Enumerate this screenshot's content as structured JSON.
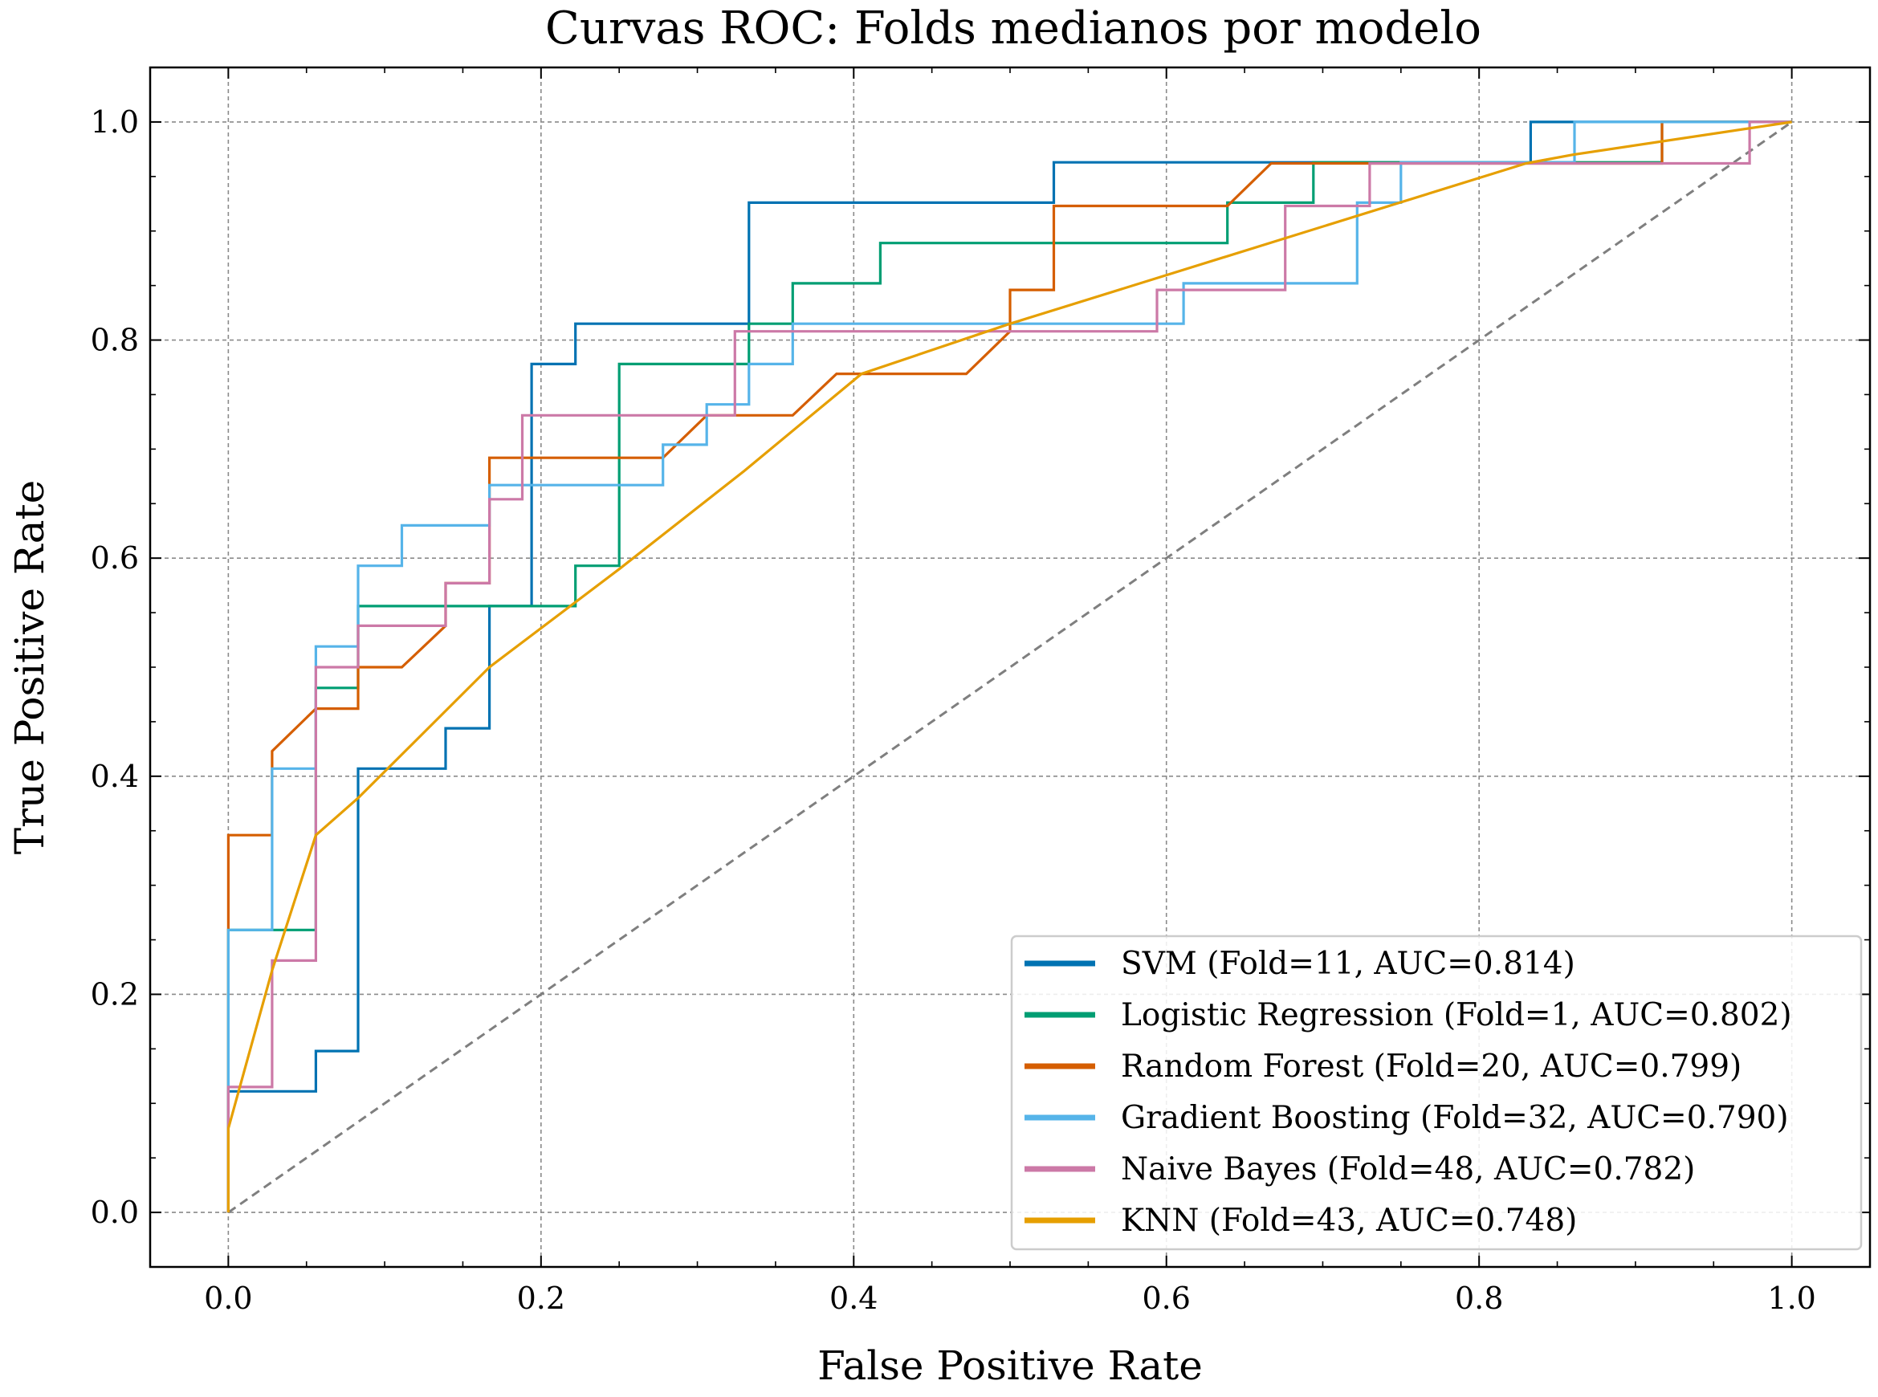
{
  "chart_data": {
    "type": "line",
    "title": "Curvas ROC: Folds medianos por modelo",
    "xlabel": "False Positive Rate",
    "ylabel": "True Positive Rate",
    "xlim": [
      -0.05,
      1.05
    ],
    "ylim": [
      -0.05,
      1.05
    ],
    "xticks": [
      "0.0",
      "0.2",
      "0.4",
      "0.6",
      "0.8",
      "1.0"
    ],
    "yticks": [
      "0.0",
      "0.2",
      "0.4",
      "0.6",
      "0.8",
      "1.0"
    ],
    "grid": true,
    "legend_position": "lower-right",
    "diagonal_color": "#7f7f7f",
    "series": [
      {
        "name": "SVM (Fold=11, AUC=0.814)",
        "color": "#0072b2",
        "points": [
          [
            0,
            0
          ],
          [
            0,
            0.111
          ],
          [
            0.056,
            0.111
          ],
          [
            0.056,
            0.148
          ],
          [
            0.083,
            0.148
          ],
          [
            0.083,
            0.407
          ],
          [
            0.139,
            0.407
          ],
          [
            0.139,
            0.444
          ],
          [
            0.167,
            0.444
          ],
          [
            0.167,
            0.556
          ],
          [
            0.194,
            0.556
          ],
          [
            0.194,
            0.778
          ],
          [
            0.222,
            0.778
          ],
          [
            0.222,
            0.815
          ],
          [
            0.333,
            0.815
          ],
          [
            0.333,
            0.926
          ],
          [
            0.528,
            0.926
          ],
          [
            0.528,
            0.963
          ],
          [
            0.833,
            0.963
          ],
          [
            0.833,
            1.0
          ],
          [
            1.0,
            1.0
          ]
        ]
      },
      {
        "name": "Logistic Regression (Fold=1, AUC=0.802)",
        "color": "#009e73",
        "points": [
          [
            0,
            0
          ],
          [
            0,
            0.259
          ],
          [
            0.056,
            0.259
          ],
          [
            0.056,
            0.481
          ],
          [
            0.083,
            0.481
          ],
          [
            0.083,
            0.556
          ],
          [
            0.222,
            0.556
          ],
          [
            0.222,
            0.593
          ],
          [
            0.25,
            0.593
          ],
          [
            0.25,
            0.778
          ],
          [
            0.333,
            0.778
          ],
          [
            0.333,
            0.815
          ],
          [
            0.361,
            0.815
          ],
          [
            0.361,
            0.852
          ],
          [
            0.417,
            0.852
          ],
          [
            0.417,
            0.889
          ],
          [
            0.639,
            0.889
          ],
          [
            0.639,
            0.926
          ],
          [
            0.694,
            0.926
          ],
          [
            0.694,
            0.963
          ],
          [
            0.917,
            0.963
          ],
          [
            0.917,
            1.0
          ],
          [
            1.0,
            1.0
          ]
        ]
      },
      {
        "name": "Random Forest (Fold=20, AUC=0.799)",
        "color": "#d55e00",
        "points": [
          [
            0,
            0
          ],
          [
            0,
            0.346
          ],
          [
            0.028,
            0.346
          ],
          [
            0.028,
            0.423
          ],
          [
            0.056,
            0.462
          ],
          [
            0.083,
            0.462
          ],
          [
            0.083,
            0.5
          ],
          [
            0.111,
            0.5
          ],
          [
            0.139,
            0.538
          ],
          [
            0.139,
            0.577
          ],
          [
            0.167,
            0.577
          ],
          [
            0.167,
            0.692
          ],
          [
            0.278,
            0.692
          ],
          [
            0.306,
            0.731
          ],
          [
            0.361,
            0.731
          ],
          [
            0.389,
            0.769
          ],
          [
            0.472,
            0.769
          ],
          [
            0.5,
            0.808
          ],
          [
            0.5,
            0.846
          ],
          [
            0.528,
            0.846
          ],
          [
            0.528,
            0.923
          ],
          [
            0.639,
            0.923
          ],
          [
            0.667,
            0.962
          ],
          [
            0.917,
            0.962
          ],
          [
            0.917,
            1.0
          ],
          [
            1.0,
            1.0
          ]
        ]
      },
      {
        "name": "Gradient Boosting (Fold=32, AUC=0.790)",
        "color": "#56b4e9",
        "points": [
          [
            0,
            0
          ],
          [
            0,
            0.259
          ],
          [
            0.028,
            0.259
          ],
          [
            0.028,
            0.407
          ],
          [
            0.056,
            0.407
          ],
          [
            0.056,
            0.519
          ],
          [
            0.083,
            0.519
          ],
          [
            0.083,
            0.593
          ],
          [
            0.111,
            0.593
          ],
          [
            0.111,
            0.63
          ],
          [
            0.167,
            0.63
          ],
          [
            0.167,
            0.667
          ],
          [
            0.278,
            0.667
          ],
          [
            0.278,
            0.704
          ],
          [
            0.306,
            0.704
          ],
          [
            0.306,
            0.741
          ],
          [
            0.333,
            0.741
          ],
          [
            0.333,
            0.778
          ],
          [
            0.361,
            0.778
          ],
          [
            0.361,
            0.815
          ],
          [
            0.611,
            0.815
          ],
          [
            0.611,
            0.852
          ],
          [
            0.722,
            0.852
          ],
          [
            0.722,
            0.926
          ],
          [
            0.75,
            0.926
          ],
          [
            0.75,
            0.963
          ],
          [
            0.861,
            0.963
          ],
          [
            0.861,
            1.0
          ],
          [
            1.0,
            1.0
          ]
        ]
      },
      {
        "name": "Naive Bayes (Fold=48, AUC=0.782)",
        "color": "#cc79a7",
        "points": [
          [
            0,
            0
          ],
          [
            0,
            0.115
          ],
          [
            0.028,
            0.115
          ],
          [
            0.028,
            0.231
          ],
          [
            0.056,
            0.231
          ],
          [
            0.056,
            0.5
          ],
          [
            0.083,
            0.5
          ],
          [
            0.083,
            0.538
          ],
          [
            0.139,
            0.538
          ],
          [
            0.139,
            0.577
          ],
          [
            0.167,
            0.577
          ],
          [
            0.167,
            0.654
          ],
          [
            0.188,
            0.654
          ],
          [
            0.188,
            0.731
          ],
          [
            0.324,
            0.731
          ],
          [
            0.324,
            0.808
          ],
          [
            0.594,
            0.808
          ],
          [
            0.594,
            0.846
          ],
          [
            0.676,
            0.846
          ],
          [
            0.676,
            0.923
          ],
          [
            0.73,
            0.923
          ],
          [
            0.73,
            0.962
          ],
          [
            0.973,
            0.962
          ],
          [
            0.973,
            1.0
          ],
          [
            1.0,
            1.0
          ]
        ]
      },
      {
        "name": "KNN (Fold=43, AUC=0.748)",
        "color": "#e69f00",
        "points": [
          [
            0,
            0
          ],
          [
            0,
            0.077
          ],
          [
            0.028,
            0.222
          ],
          [
            0.056,
            0.346
          ],
          [
            0.083,
            0.38
          ],
          [
            0.167,
            0.5
          ],
          [
            0.25,
            0.59
          ],
          [
            0.33,
            0.68
          ],
          [
            0.405,
            0.769
          ],
          [
            0.5,
            0.815
          ],
          [
            0.83,
            0.962
          ],
          [
            0.86,
            0.97
          ],
          [
            1.0,
            1.0
          ]
        ]
      }
    ]
  }
}
